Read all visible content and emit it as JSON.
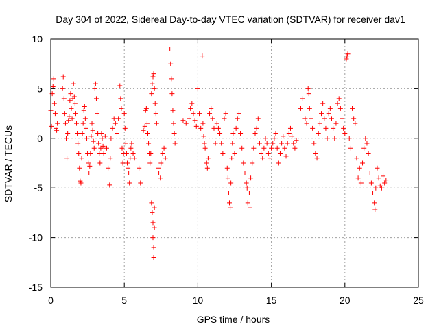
{
  "chart_data": {
    "type": "scatter",
    "title": "Day 304 of 2022, Sidereal Day-to-day VTEC variation (SDTVAR) for receiver dav1",
    "xlabel": "GPS time / hours",
    "ylabel": "SDTVAR / TECUs",
    "xlim": [
      0,
      25
    ],
    "ylim": [
      -15,
      10
    ],
    "xticks": [
      "0",
      "5",
      "10",
      "15",
      "20",
      "25"
    ],
    "yticks": [
      "-15",
      "-10",
      "-5",
      "0",
      "5",
      "10"
    ],
    "grid": true,
    "marker": "+",
    "color": "#ff0000",
    "series": [
      {
        "name": "SDTVAR",
        "points": [
          [
            0.0,
            2.8
          ],
          [
            0.05,
            1.2
          ],
          [
            0.1,
            4.5
          ],
          [
            0.15,
            5.2
          ],
          [
            0.2,
            6.0
          ],
          [
            0.25,
            3.5
          ],
          [
            0.3,
            2.5
          ],
          [
            0.35,
            1.0
          ],
          [
            0.4,
            0.8
          ],
          [
            0.45,
            1.5
          ],
          [
            0.8,
            5.0
          ],
          [
            0.85,
            6.2
          ],
          [
            0.9,
            4.0
          ],
          [
            0.95,
            2.5
          ],
          [
            1.0,
            1.5
          ],
          [
            1.05,
            0.0
          ],
          [
            1.1,
            -2.0
          ],
          [
            1.15,
            0.5
          ],
          [
            1.2,
            1.8
          ],
          [
            1.25,
            2.2
          ],
          [
            1.3,
            3.8
          ],
          [
            1.35,
            4.5
          ],
          [
            1.4,
            3.0
          ],
          [
            1.45,
            2.0
          ],
          [
            1.5,
            4.0
          ],
          [
            1.55,
            5.5
          ],
          [
            1.6,
            4.2
          ],
          [
            1.65,
            3.5
          ],
          [
            1.7,
            2.5
          ],
          [
            1.75,
            1.5
          ],
          [
            1.8,
            0.5
          ],
          [
            1.85,
            -0.5
          ],
          [
            1.9,
            -1.5
          ],
          [
            1.95,
            -3.0
          ],
          [
            2.0,
            -4.3
          ],
          [
            2.05,
            -4.5
          ],
          [
            2.1,
            -2.0
          ],
          [
            2.15,
            0.5
          ],
          [
            2.2,
            1.5
          ],
          [
            2.25,
            2.8
          ],
          [
            2.3,
            3.2
          ],
          [
            2.35,
            2.0
          ],
          [
            2.4,
            1.0
          ],
          [
            2.45,
            0.0
          ],
          [
            2.5,
            -1.5
          ],
          [
            2.55,
            -2.5
          ],
          [
            2.6,
            -3.5
          ],
          [
            2.65,
            -2.8
          ],
          [
            2.7,
            -1.5
          ],
          [
            2.75,
            0.2
          ],
          [
            2.8,
            1.5
          ],
          [
            2.85,
            0.8
          ],
          [
            2.9,
            -0.3
          ],
          [
            2.95,
            -1.0
          ],
          [
            3.0,
            5.0
          ],
          [
            3.05,
            5.5
          ],
          [
            3.1,
            4.0
          ],
          [
            3.15,
            2.5
          ],
          [
            3.2,
            0.5
          ],
          [
            3.25,
            -0.5
          ],
          [
            3.3,
            -1.5
          ],
          [
            3.35,
            -2.5
          ],
          [
            3.4,
            -1.0
          ],
          [
            3.45,
            0.5
          ],
          [
            3.5,
            0.0
          ],
          [
            3.55,
            -0.8
          ],
          [
            3.6,
            -1.5
          ],
          [
            3.7,
            0.2
          ],
          [
            3.8,
            -1.0
          ],
          [
            3.9,
            -3.0
          ],
          [
            4.0,
            -4.7
          ],
          [
            4.05,
            -2.0
          ],
          [
            4.1,
            0.0
          ],
          [
            4.2,
            1.0
          ],
          [
            4.3,
            2.0
          ],
          [
            4.4,
            1.5
          ],
          [
            4.5,
            0.5
          ],
          [
            4.6,
            2.0
          ],
          [
            4.7,
            5.3
          ],
          [
            4.75,
            4.0
          ],
          [
            4.8,
            3.0
          ],
          [
            4.85,
            -1.0
          ],
          [
            4.9,
            -2.5
          ],
          [
            4.95,
            -1.5
          ],
          [
            5.0,
            2.5
          ],
          [
            5.05,
            1.0
          ],
          [
            5.1,
            -0.5
          ],
          [
            5.15,
            -1.5
          ],
          [
            5.2,
            -2.5
          ],
          [
            5.25,
            -3.0
          ],
          [
            5.3,
            -3.5
          ],
          [
            5.35,
            -4.5
          ],
          [
            5.4,
            -2.0
          ],
          [
            5.45,
            -1.0
          ],
          [
            5.5,
            -0.5
          ],
          [
            5.6,
            -1.5
          ],
          [
            5.7,
            -2.0
          ],
          [
            6.0,
            -3.0
          ],
          [
            6.1,
            -4.5
          ],
          [
            6.3,
            0.8
          ],
          [
            6.4,
            1.2
          ],
          [
            6.45,
            2.8
          ],
          [
            6.5,
            3.0
          ],
          [
            6.55,
            1.5
          ],
          [
            6.6,
            0.5
          ],
          [
            6.65,
            -0.5
          ],
          [
            6.7,
            -1.5
          ],
          [
            6.75,
            -2.5
          ],
          [
            6.8,
            -1.5
          ],
          [
            6.85,
            -6.5
          ],
          [
            6.9,
            -7.5
          ],
          [
            6.95,
            -8.5
          ],
          [
            6.95,
            -10.0
          ],
          [
            7.0,
            -11.0
          ],
          [
            7.0,
            -12.0
          ],
          [
            7.05,
            -9.0
          ],
          [
            7.05,
            -7.0
          ],
          [
            6.85,
            4.5
          ],
          [
            6.9,
            5.5
          ],
          [
            6.95,
            6.2
          ],
          [
            7.0,
            6.5
          ],
          [
            7.05,
            5.0
          ],
          [
            7.1,
            3.5
          ],
          [
            7.15,
            2.5
          ],
          [
            7.2,
            1.5
          ],
          [
            7.3,
            -3.0
          ],
          [
            7.35,
            -3.5
          ],
          [
            7.45,
            -4.0
          ],
          [
            7.5,
            -2.5
          ],
          [
            7.6,
            -1.5
          ],
          [
            7.7,
            -1.0
          ],
          [
            7.8,
            -2.0
          ],
          [
            8.1,
            9.0
          ],
          [
            8.15,
            7.5
          ],
          [
            8.2,
            6.0
          ],
          [
            8.25,
            4.5
          ],
          [
            8.3,
            2.8
          ],
          [
            8.35,
            1.5
          ],
          [
            8.4,
            0.5
          ],
          [
            8.45,
            -0.5
          ],
          [
            9.0,
            1.8
          ],
          [
            9.2,
            1.5
          ],
          [
            9.4,
            2.0
          ],
          [
            9.5,
            3.0
          ],
          [
            9.6,
            3.5
          ],
          [
            9.7,
            2.5
          ],
          [
            9.8,
            1.8
          ],
          [
            9.9,
            1.2
          ],
          [
            10.0,
            5.0
          ],
          [
            10.1,
            2.5
          ],
          [
            10.2,
            1.0
          ],
          [
            10.3,
            8.3
          ],
          [
            10.35,
            1.5
          ],
          [
            10.4,
            0.2
          ],
          [
            10.45,
            -0.5
          ],
          [
            10.5,
            -1.0
          ],
          [
            10.6,
            -2.5
          ],
          [
            10.65,
            -3.0
          ],
          [
            10.7,
            -2.0
          ],
          [
            10.8,
            2.5
          ],
          [
            10.9,
            3.0
          ],
          [
            11.0,
            2.0
          ],
          [
            11.1,
            1.0
          ],
          [
            11.2,
            -0.5
          ],
          [
            11.3,
            1.5
          ],
          [
            11.4,
            1.0
          ],
          [
            11.5,
            0.5
          ],
          [
            11.6,
            -0.5
          ],
          [
            11.7,
            -1.5
          ],
          [
            11.8,
            2.0
          ],
          [
            11.9,
            2.5
          ],
          [
            12.0,
            -3.0
          ],
          [
            12.05,
            -4.0
          ],
          [
            12.1,
            -5.5
          ],
          [
            12.15,
            -6.5
          ],
          [
            12.2,
            -7.0
          ],
          [
            12.25,
            -4.5
          ],
          [
            12.3,
            -2.0
          ],
          [
            12.35,
            -0.5
          ],
          [
            12.4,
            0.5
          ],
          [
            12.5,
            -1.5
          ],
          [
            12.6,
            1.0
          ],
          [
            12.7,
            2.0
          ],
          [
            12.8,
            2.5
          ],
          [
            12.9,
            0.5
          ],
          [
            13.0,
            -1.0
          ],
          [
            13.1,
            -2.5
          ],
          [
            13.2,
            -3.5
          ],
          [
            13.3,
            -4.5
          ],
          [
            13.35,
            -5.0
          ],
          [
            13.4,
            -6.5
          ],
          [
            13.5,
            -5.5
          ],
          [
            13.55,
            -7.0
          ],
          [
            13.6,
            -4.0
          ],
          [
            13.7,
            -2.5
          ],
          [
            13.8,
            -1.0
          ],
          [
            13.9,
            0.5
          ],
          [
            14.0,
            1.0
          ],
          [
            14.1,
            2.0
          ],
          [
            14.2,
            -0.5
          ],
          [
            14.3,
            -1.5
          ],
          [
            14.4,
            -2.0
          ],
          [
            14.5,
            -1.0
          ],
          [
            14.6,
            0.0
          ],
          [
            14.7,
            -0.5
          ],
          [
            14.8,
            -1.5
          ],
          [
            14.9,
            -2.0
          ],
          [
            15.0,
            -1.0
          ],
          [
            15.1,
            -0.5
          ],
          [
            15.2,
            0.0
          ],
          [
            15.3,
            0.5
          ],
          [
            15.4,
            -1.0
          ],
          [
            15.5,
            -2.5
          ],
          [
            15.6,
            -1.5
          ],
          [
            15.7,
            -0.5
          ],
          [
            15.8,
            0.2
          ],
          [
            15.9,
            -1.0
          ],
          [
            16.0,
            -1.8
          ],
          [
            16.1,
            -0.5
          ],
          [
            16.2,
            0.5
          ],
          [
            16.3,
            1.0
          ],
          [
            16.4,
            0.2
          ],
          [
            16.5,
            -0.5
          ],
          [
            16.6,
            -1.0
          ],
          [
            16.7,
            -0.2
          ],
          [
            17.0,
            3.0
          ],
          [
            17.1,
            4.0
          ],
          [
            17.3,
            2.0
          ],
          [
            17.4,
            1.5
          ],
          [
            17.5,
            5.0
          ],
          [
            17.55,
            4.5
          ],
          [
            17.6,
            3.0
          ],
          [
            17.7,
            2.0
          ],
          [
            17.8,
            1.0
          ],
          [
            17.9,
            -0.5
          ],
          [
            18.0,
            -1.5
          ],
          [
            18.1,
            -2.0
          ],
          [
            18.2,
            0.5
          ],
          [
            18.3,
            1.5
          ],
          [
            18.4,
            2.5
          ],
          [
            18.5,
            3.5
          ],
          [
            18.6,
            2.0
          ],
          [
            18.7,
            1.0
          ],
          [
            18.8,
            0.0
          ],
          [
            18.9,
            2.5
          ],
          [
            19.0,
            3.0
          ],
          [
            19.1,
            2.0
          ],
          [
            19.2,
            1.0
          ],
          [
            19.3,
            0.0
          ],
          [
            19.4,
            1.5
          ],
          [
            19.5,
            3.5
          ],
          [
            19.6,
            4.0
          ],
          [
            19.7,
            3.0
          ],
          [
            19.8,
            2.0
          ],
          [
            19.9,
            1.0
          ],
          [
            20.0,
            0.5
          ],
          [
            20.1,
            8.0
          ],
          [
            20.15,
            8.3
          ],
          [
            20.2,
            8.5
          ],
          [
            20.3,
            0.0
          ],
          [
            20.4,
            -1.0
          ],
          [
            20.5,
            3.0
          ],
          [
            20.6,
            2.0
          ],
          [
            20.7,
            1.5
          ],
          [
            20.8,
            -2.0
          ],
          [
            20.9,
            -4.0
          ],
          [
            21.0,
            -3.0
          ],
          [
            21.1,
            -4.5
          ],
          [
            21.2,
            -2.5
          ],
          [
            21.3,
            -1.0
          ],
          [
            21.4,
            0.0
          ],
          [
            21.5,
            -0.5
          ],
          [
            21.6,
            -1.5
          ],
          [
            21.7,
            -3.5
          ],
          [
            21.8,
            -4.5
          ],
          [
            21.9,
            -5.5
          ],
          [
            22.0,
            -6.5
          ],
          [
            22.05,
            -7.2
          ],
          [
            22.1,
            -5.0
          ],
          [
            22.2,
            -3.0
          ],
          [
            22.3,
            -4.0
          ],
          [
            22.4,
            -4.8
          ],
          [
            22.5,
            -5.0
          ],
          [
            22.6,
            -3.8
          ],
          [
            22.7,
            -4.5
          ],
          [
            22.8,
            -4.2
          ]
        ]
      }
    ]
  }
}
